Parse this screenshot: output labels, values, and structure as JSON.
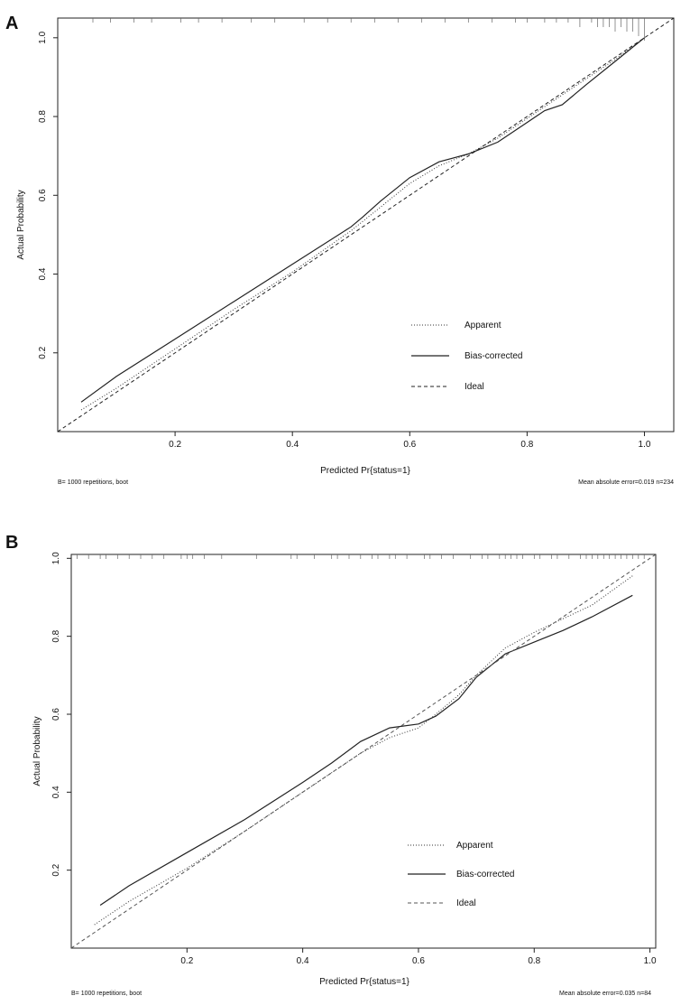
{
  "chart_data": [
    {
      "panel_label": "A",
      "type": "line",
      "xlabel": "Predicted Pr{status=1}",
      "ylabel": "Actual Probability",
      "xlim": [
        0.0,
        1.05
      ],
      "ylim": [
        0.0,
        1.05
      ],
      "xticks": [
        0.2,
        0.4,
        0.6,
        0.8,
        1.0
      ],
      "xtick_labels": [
        "0.2",
        "0.4",
        "0.6",
        "0.8",
        "1.0"
      ],
      "yticks": [
        0.2,
        0.4,
        0.6,
        0.8,
        1.0
      ],
      "ytick_labels": [
        "0.2",
        "0.4",
        "0.6",
        "0.8",
        "1.0"
      ],
      "grid": false,
      "legend_position": "bottom-right",
      "footnote_left": "B= 1000 repetitions, boot",
      "footnote_right": "Mean absolute error=0.019 n=234",
      "series": [
        {
          "name": "Apparent",
          "style": "dotted",
          "x": [
            0.04,
            0.1,
            0.2,
            0.3,
            0.4,
            0.5,
            0.55,
            0.6,
            0.65,
            0.7,
            0.75,
            0.8,
            0.85,
            0.9,
            0.95,
            1.0
          ],
          "y": [
            0.055,
            0.11,
            0.21,
            0.31,
            0.405,
            0.51,
            0.57,
            0.63,
            0.675,
            0.705,
            0.745,
            0.795,
            0.845,
            0.895,
            0.945,
            1.0
          ]
        },
        {
          "name": "Bias-corrected",
          "style": "solid",
          "x": [
            0.04,
            0.1,
            0.2,
            0.3,
            0.4,
            0.5,
            0.52,
            0.55,
            0.6,
            0.65,
            0.7,
            0.75,
            0.8,
            0.83,
            0.86,
            0.9,
            0.95,
            1.0
          ],
          "y": [
            0.075,
            0.14,
            0.235,
            0.33,
            0.425,
            0.52,
            0.545,
            0.585,
            0.645,
            0.685,
            0.705,
            0.735,
            0.785,
            0.815,
            0.83,
            0.88,
            0.94,
            1.0
          ]
        },
        {
          "name": "Ideal",
          "style": "dashed",
          "x": [
            0.0,
            1.05
          ],
          "y": [
            0.0,
            1.05
          ]
        }
      ],
      "rug": [
        0.06,
        0.09,
        0.13,
        0.16,
        0.21,
        0.24,
        0.28,
        0.33,
        0.37,
        0.42,
        0.46,
        0.5,
        0.54,
        0.58,
        0.62,
        0.66,
        0.7,
        0.74,
        0.78,
        0.8,
        0.83,
        0.85,
        0.87,
        0.89,
        0.91,
        0.92,
        0.93,
        0.94,
        0.95,
        0.96,
        0.97,
        0.98,
        0.99,
        1.0
      ],
      "rug_heights": [
        1,
        1,
        1,
        1,
        1,
        1,
        1,
        1,
        1,
        1,
        1,
        1,
        1,
        1,
        1,
        1,
        1,
        1,
        1,
        1,
        1,
        1,
        1,
        2,
        1,
        2,
        2,
        2,
        3,
        2,
        3,
        3,
        4,
        5
      ]
    },
    {
      "panel_label": "B",
      "type": "line",
      "xlabel": "Predicted Pr{status=1}",
      "ylabel": "Actual Probability",
      "xlim": [
        0.0,
        1.01
      ],
      "ylim": [
        0.0,
        1.01
      ],
      "xticks": [
        0.2,
        0.4,
        0.6,
        0.8,
        1.0
      ],
      "xtick_labels": [
        "0.2",
        "0.4",
        "0.6",
        "0.8",
        "1.0"
      ],
      "yticks": [
        0.2,
        0.4,
        0.6,
        0.8,
        1.0
      ],
      "ytick_labels": [
        "0.2",
        "0.4",
        "0.6",
        "0.8",
        "1.0"
      ],
      "grid": false,
      "legend_position": "bottom-right",
      "footnote_left": "B= 1000 repetitions, boot",
      "footnote_right": "Mean absolute error=0.035 n=84",
      "series": [
        {
          "name": "Apparent",
          "style": "dotted",
          "x": [
            0.04,
            0.1,
            0.2,
            0.3,
            0.4,
            0.5,
            0.55,
            0.6,
            0.63,
            0.67,
            0.7,
            0.75,
            0.8,
            0.85,
            0.9,
            0.97
          ],
          "y": [
            0.06,
            0.12,
            0.205,
            0.3,
            0.4,
            0.5,
            0.54,
            0.565,
            0.6,
            0.65,
            0.7,
            0.77,
            0.81,
            0.845,
            0.88,
            0.955
          ]
        },
        {
          "name": "Bias-corrected",
          "style": "solid",
          "x": [
            0.05,
            0.1,
            0.2,
            0.3,
            0.4,
            0.45,
            0.5,
            0.55,
            0.6,
            0.63,
            0.67,
            0.7,
            0.75,
            0.8,
            0.85,
            0.9,
            0.97
          ],
          "y": [
            0.11,
            0.16,
            0.245,
            0.33,
            0.425,
            0.475,
            0.53,
            0.565,
            0.575,
            0.595,
            0.64,
            0.695,
            0.755,
            0.785,
            0.815,
            0.85,
            0.905
          ]
        },
        {
          "name": "Ideal",
          "style": "dashed",
          "x": [
            0.0,
            1.01
          ],
          "y": [
            0.0,
            1.01
          ]
        }
      ],
      "rug": [
        0.01,
        0.03,
        0.05,
        0.06,
        0.08,
        0.1,
        0.12,
        0.14,
        0.16,
        0.19,
        0.2,
        0.21,
        0.23,
        0.26,
        0.32,
        0.38,
        0.39,
        0.42,
        0.45,
        0.46,
        0.48,
        0.5,
        0.52,
        0.53,
        0.55,
        0.56,
        0.58,
        0.61,
        0.62,
        0.64,
        0.66,
        0.69,
        0.71,
        0.72,
        0.74,
        0.75,
        0.76,
        0.77,
        0.78,
        0.8,
        0.81,
        0.83,
        0.84,
        0.86,
        0.88,
        0.89,
        0.9,
        0.91,
        0.92,
        0.93,
        0.94,
        0.95,
        0.96,
        0.97,
        0.98,
        0.99
      ]
    }
  ]
}
